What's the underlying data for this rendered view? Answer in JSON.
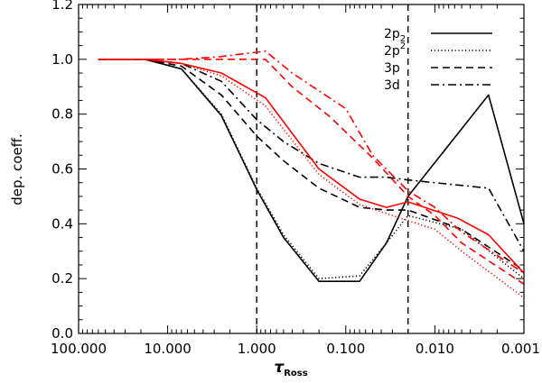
{
  "chart_data": {
    "type": "line",
    "xscale": "log",
    "x_reversed": true,
    "xlim": [
      100,
      0.001
    ],
    "ylim": [
      0.0,
      1.2
    ],
    "xlabel_main": "τ",
    "xlabel_sub": "Ross",
    "ylabel": "dep. coeff.",
    "x_ticks": [
      {
        "value": 100,
        "label": "100.000"
      },
      {
        "value": 10,
        "label": "10.000"
      },
      {
        "value": 1,
        "label": "1.000"
      },
      {
        "value": 0.1,
        "label": "0.100"
      },
      {
        "value": 0.01,
        "label": "0.010"
      },
      {
        "value": 0.001,
        "label": "0.001"
      }
    ],
    "y_ticks": [
      {
        "value": 0.0,
        "label": "0.0"
      },
      {
        "value": 0.2,
        "label": "0.2"
      },
      {
        "value": 0.4,
        "label": "0.4"
      },
      {
        "value": 0.6,
        "label": "0.6"
      },
      {
        "value": 0.8,
        "label": "0.8"
      },
      {
        "value": 1.0,
        "label": "1.0"
      },
      {
        "value": 1.2,
        "label": "1.2"
      }
    ],
    "vlines": [
      1.0,
      0.02
    ],
    "legend": {
      "position": "top-right",
      "entries": [
        {
          "label": "2p",
          "sub": "2",
          "sup": "",
          "style": "solid"
        },
        {
          "label": "2p",
          "sub": "",
          "sup": "2",
          "style": "dotted"
        },
        {
          "label": "3p",
          "sub": "",
          "sup": "",
          "style": "dashed"
        },
        {
          "label": "3d",
          "sub": "",
          "sup": "",
          "style": "dashdot"
        }
      ]
    },
    "series": [
      {
        "name": "2p2 (black)",
        "color": "#000000",
        "style": "solid",
        "x": [
          60,
          18,
          7,
          2.5,
          1.0,
          0.5,
          0.2,
          0.07,
          0.035,
          0.02,
          0.0025,
          0.001
        ],
        "y": [
          1.0,
          1.0,
          0.965,
          0.795,
          0.525,
          0.35,
          0.19,
          0.19,
          0.33,
          0.5,
          0.87,
          0.4
        ]
      },
      {
        "name": "2p^2 (black)",
        "color": "#000000",
        "style": "dotted",
        "x": [
          60,
          18,
          7,
          2.5,
          1.0,
          0.5,
          0.2,
          0.07,
          0.035,
          0.02,
          0.005,
          0.001
        ],
        "y": [
          1.0,
          1.0,
          0.965,
          0.8,
          0.53,
          0.36,
          0.2,
          0.21,
          0.33,
          0.43,
          0.38,
          0.2
        ]
      },
      {
        "name": "3p (black)",
        "color": "#000000",
        "style": "dashed",
        "x": [
          60,
          18,
          7,
          2.5,
          1.0,
          0.5,
          0.2,
          0.07,
          0.035,
          0.02,
          0.005,
          0.001
        ],
        "y": [
          1.0,
          1.0,
          0.975,
          0.87,
          0.72,
          0.63,
          0.53,
          0.46,
          0.45,
          0.45,
          0.38,
          0.23
        ]
      },
      {
        "name": "3d (black)",
        "color": "#000000",
        "style": "dashdot",
        "x": [
          60,
          18,
          7,
          2.5,
          1.0,
          0.5,
          0.2,
          0.07,
          0.035,
          0.02,
          0.0025,
          0.001
        ],
        "y": [
          1.0,
          1.0,
          0.985,
          0.92,
          0.78,
          0.7,
          0.62,
          0.57,
          0.57,
          0.56,
          0.53,
          0.3
        ]
      },
      {
        "name": "2p2 (red)",
        "color": "#ff0000",
        "style": "solid",
        "x": [
          60,
          18,
          7,
          2.5,
          0.8,
          0.2,
          0.07,
          0.035,
          0.02,
          0.0055,
          0.0025,
          0.001
        ],
        "y": [
          1.0,
          1.0,
          0.985,
          0.95,
          0.86,
          0.6,
          0.49,
          0.46,
          0.48,
          0.42,
          0.36,
          0.22
        ]
      },
      {
        "name": "2p^2 (red)",
        "color": "#ff0000",
        "style": "dotted",
        "x": [
          60,
          18,
          7,
          2.5,
          0.8,
          0.2,
          0.07,
          0.03,
          0.01,
          0.005,
          0.001
        ],
        "y": [
          1.0,
          1.0,
          0.985,
          0.94,
          0.83,
          0.58,
          0.47,
          0.43,
          0.38,
          0.3,
          0.13
        ]
      },
      {
        "name": "3p (red)",
        "color": "#ff0000",
        "style": "dashed",
        "x": [
          60,
          18,
          7,
          2.5,
          0.8,
          0.4,
          0.15,
          0.05,
          0.02,
          0.01,
          0.005,
          0.001
        ],
        "y": [
          1.0,
          1.0,
          1.0,
          1.0,
          1.0,
          0.9,
          0.79,
          0.64,
          0.5,
          0.43,
          0.33,
          0.18
        ]
      },
      {
        "name": "3d (red)",
        "color": "#ff0000",
        "style": "dashdot",
        "x": [
          60,
          18,
          7,
          2.5,
          0.8,
          0.4,
          0.1,
          0.05,
          0.02,
          0.01,
          0.005,
          0.001
        ],
        "y": [
          1.0,
          1.0,
          1.0,
          1.01,
          1.03,
          0.95,
          0.82,
          0.65,
          0.52,
          0.46,
          0.37,
          0.22
        ]
      }
    ]
  }
}
